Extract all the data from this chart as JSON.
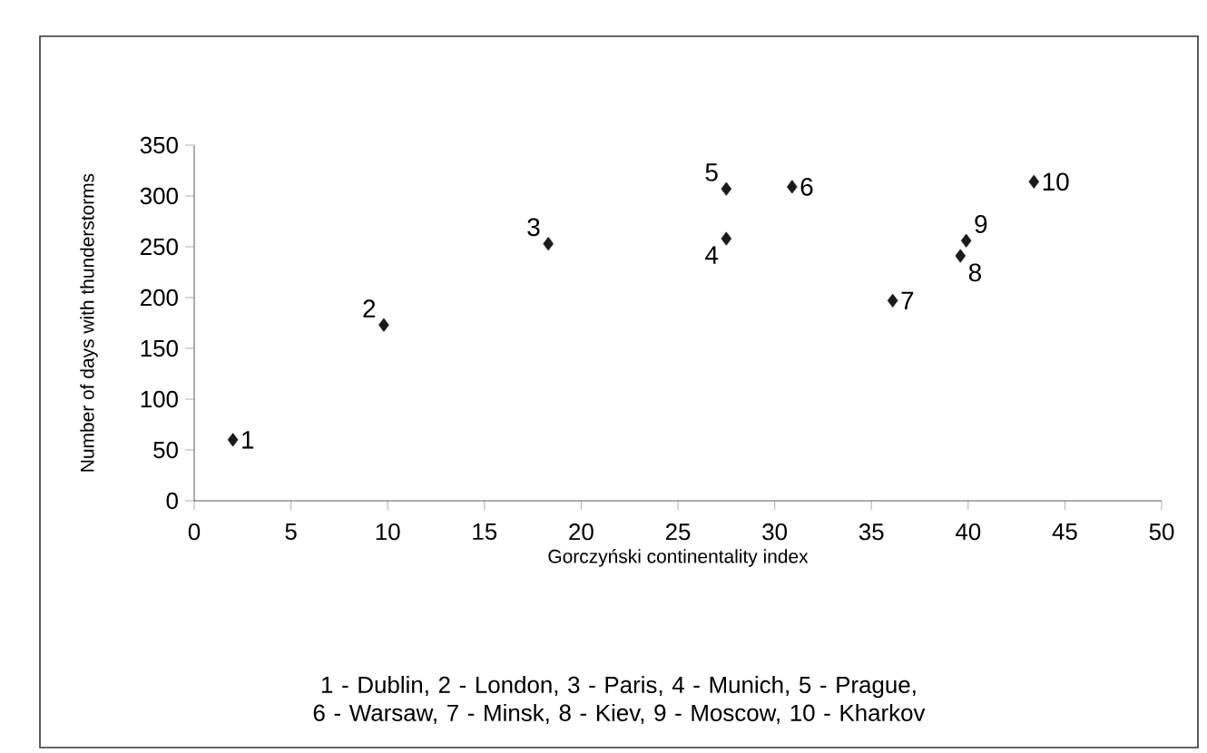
{
  "chart_data": {
    "type": "scatter",
    "xlabel": "Gorczyński  continentality index",
    "ylabel": "Number of days with thunderstorms",
    "series": [
      {
        "color": "#1a1a1a",
        "x": [
          2.0,
          9.8,
          18.3,
          27.5,
          27.5,
          30.9,
          36.1,
          39.6,
          39.9,
          43.4
        ],
        "values": [
          60,
          173,
          253,
          258,
          307,
          309,
          197,
          241,
          256,
          314
        ]
      }
    ],
    "marker": "diamond",
    "grid": false,
    "xlim": [
      0,
      50
    ],
    "xticks": [
      0,
      5,
      10,
      15,
      20,
      25,
      30,
      35,
      40,
      45,
      50
    ],
    "ylim": [
      0,
      350
    ],
    "yticks": [
      0,
      50,
      100,
      150,
      200,
      250,
      300,
      350
    ],
    "annotations": [
      {
        "text": "1",
        "x": 2.0,
        "y": 60
      },
      {
        "text": "2",
        "x": 9.8,
        "y": 173
      },
      {
        "text": "3",
        "x": 18.3,
        "y": 253
      },
      {
        "text": "4",
        "x": 27.5,
        "y": 258
      },
      {
        "text": "5",
        "x": 27.5,
        "y": 307
      },
      {
        "text": "6",
        "x": 30.9,
        "y": 309
      },
      {
        "text": "7",
        "x": 36.1,
        "y": 197
      },
      {
        "text": "8",
        "x": 39.6,
        "y": 241
      },
      {
        "text": "9",
        "x": 39.9,
        "y": 256
      },
      {
        "text": "10",
        "x": 43.4,
        "y": 314
      },
      "1 - Dublin, 2 - London, 3 - Paris, 4 - Munich, 5 - Prague, 6 - Warsaw, 7 - Minsk, 8  - Kiev, 9 - Moscow, 10 - Kharkov"
    ]
  }
}
